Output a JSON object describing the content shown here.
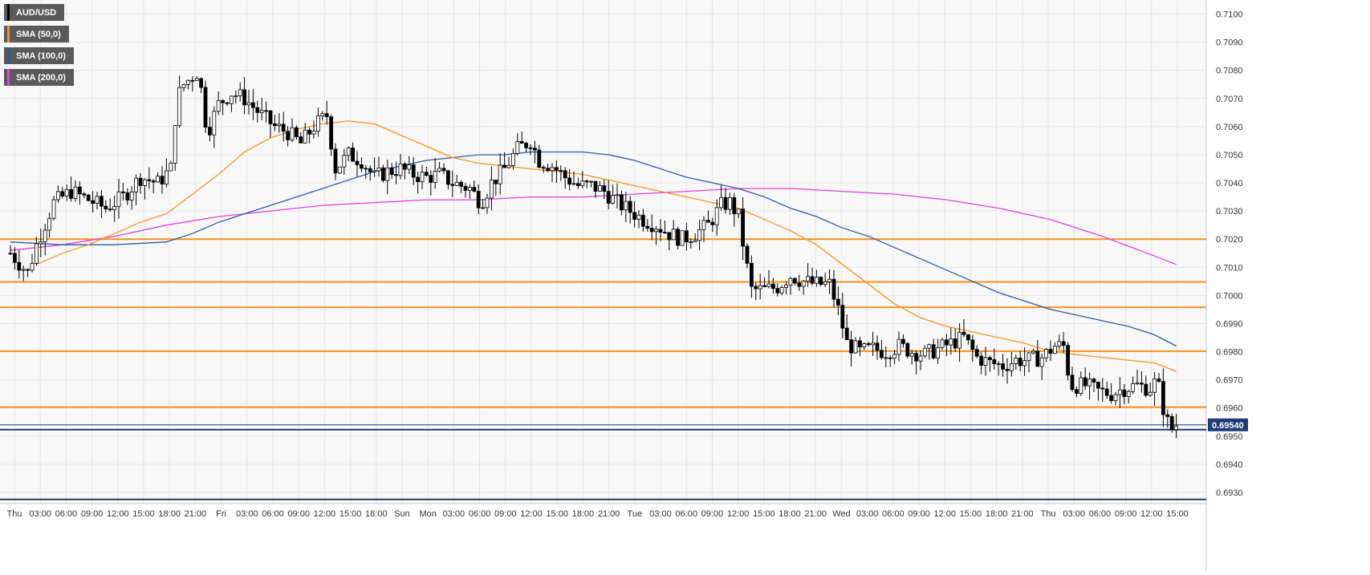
{
  "legend": [
    {
      "label": "AUD/USD",
      "color": "#000000"
    },
    {
      "label": "SMA (50,0)",
      "color": "#f7931e"
    },
    {
      "label": "SMA (100,0)",
      "color": "#2e5aa7"
    },
    {
      "label": "SMA (200,0)",
      "color": "#e040e0"
    }
  ],
  "chart_data": {
    "type": "candlestick",
    "symbol": "AUD/USD",
    "ylim": [
      0.6926,
      0.7105
    ],
    "y_ticks": [
      "0.7100",
      "0.7090",
      "0.7080",
      "0.7070",
      "0.7060",
      "0.7050",
      "0.7040",
      "0.7030",
      "0.7020",
      "0.7010",
      "0.7000",
      "0.6990",
      "0.6980",
      "0.6970",
      "0.6960",
      "0.6950",
      "0.6940",
      "0.6930"
    ],
    "x_ticks": [
      "Thu",
      "03:00",
      "06:00",
      "09:00",
      "12:00",
      "15:00",
      "18:00",
      "21:00",
      "Fri",
      "03:00",
      "06:00",
      "09:00",
      "12:00",
      "15:00",
      "18:00",
      "Sun",
      "Mon",
      "03:00",
      "06:00",
      "09:00",
      "12:00",
      "15:00",
      "18:00",
      "21:00",
      "Tue",
      "03:00",
      "06:00",
      "09:00",
      "12:00",
      "15:00",
      "18:00",
      "21:00",
      "Wed",
      "03:00",
      "06:00",
      "09:00",
      "12:00",
      "15:00",
      "18:00",
      "21:00",
      "Thu",
      "03:00",
      "06:00",
      "09:00",
      "12:00",
      "15:00"
    ],
    "session_dividers": [
      "Thu",
      "Fri",
      "Sun",
      "Mon",
      "Tue",
      "Wed",
      "Thu"
    ],
    "last_price_label": "0.69540",
    "last_price": 0.6954,
    "current_price_line": 0.69523,
    "bottom_line": 0.69275,
    "horizontal_levels": [
      0.702,
      0.70048,
      0.69958,
      0.69802,
      0.69603
    ],
    "colors": {
      "level": "#f7931e",
      "price_line": "#1f3a78",
      "sma50": "#f7931e",
      "sma100": "#2e5aa7",
      "sma200": "#e040e0",
      "grid": "#e6e6e6",
      "background": "#f8f8f8"
    },
    "grid": true,
    "legend_position": "top-left",
    "price_path": [
      [
        0,
        0.7015
      ],
      [
        2,
        0.7008
      ],
      [
        3,
        0.7018
      ],
      [
        5,
        0.7033
      ],
      [
        7,
        0.7037
      ],
      [
        9,
        0.7034
      ],
      [
        11,
        0.7031
      ],
      [
        13,
        0.7035
      ],
      [
        15,
        0.7042
      ],
      [
        17,
        0.704
      ],
      [
        18.5,
        0.7045
      ],
      [
        19.2,
        0.707
      ],
      [
        20,
        0.7075
      ],
      [
        21,
        0.7078
      ],
      [
        21.8,
        0.708
      ],
      [
        22.3,
        0.7063
      ],
      [
        23,
        0.706
      ],
      [
        24,
        0.7068
      ],
      [
        25.5,
        0.7072
      ],
      [
        27,
        0.707
      ],
      [
        29,
        0.7064
      ],
      [
        30.5,
        0.706
      ],
      [
        32,
        0.7058
      ],
      [
        33.5,
        0.7054
      ],
      [
        35,
        0.706
      ],
      [
        36.5,
        0.7064
      ],
      [
        37.5,
        0.7045
      ],
      [
        39,
        0.705
      ],
      [
        40.5,
        0.7048
      ],
      [
        42,
        0.7042
      ],
      [
        43.5,
        0.7044
      ],
      [
        45,
        0.7045
      ],
      [
        46.5,
        0.7043
      ],
      [
        48,
        0.7042
      ],
      [
        49.5,
        0.7043
      ],
      [
        51,
        0.704
      ],
      [
        53,
        0.7038
      ],
      [
        54.3,
        0.7033
      ],
      [
        55.5,
        0.704
      ],
      [
        57,
        0.7045
      ],
      [
        58.5,
        0.7052
      ],
      [
        60,
        0.7055
      ],
      [
        61,
        0.7048
      ],
      [
        62.5,
        0.7046
      ],
      [
        64,
        0.7042
      ],
      [
        65.5,
        0.7039
      ],
      [
        67,
        0.7039
      ],
      [
        68.5,
        0.7037
      ],
      [
        70,
        0.7033
      ],
      [
        71.5,
        0.703
      ],
      [
        73,
        0.7027
      ],
      [
        74.5,
        0.7025
      ],
      [
        76,
        0.7022
      ],
      [
        77.5,
        0.702
      ],
      [
        79,
        0.7022
      ],
      [
        80.5,
        0.7025
      ],
      [
        82,
        0.7032
      ],
      [
        83,
        0.7033
      ],
      [
        84,
        0.7028
      ],
      [
        84.8,
        0.7013
      ],
      [
        85.5,
        0.7002
      ],
      [
        87,
        0.7002
      ],
      [
        88.5,
        0.7003
      ],
      [
        90,
        0.7007
      ],
      [
        91.5,
        0.7005
      ],
      [
        93,
        0.7004
      ],
      [
        94.5,
        0.7004
      ],
      [
        95.5,
        0.6995
      ],
      [
        96.5,
        0.6983
      ],
      [
        98,
        0.698
      ],
      [
        99.5,
        0.6981
      ],
      [
        101,
        0.698
      ],
      [
        102.5,
        0.6982
      ],
      [
        104,
        0.698
      ],
      [
        105.5,
        0.6979
      ],
      [
        107,
        0.6981
      ],
      [
        108.5,
        0.6983
      ],
      [
        110,
        0.6985
      ],
      [
        111.5,
        0.6978
      ],
      [
        113,
        0.6976
      ],
      [
        114.5,
        0.6975
      ],
      [
        116,
        0.6977
      ],
      [
        117.5,
        0.6977
      ],
      [
        119,
        0.6978
      ],
      [
        120.5,
        0.6982
      ],
      [
        121.5,
        0.6982
      ],
      [
        122.3,
        0.6968
      ],
      [
        124,
        0.6968
      ],
      [
        125.5,
        0.6966
      ],
      [
        127,
        0.6965
      ],
      [
        128.5,
        0.6967
      ],
      [
        130,
        0.6968
      ],
      [
        131.5,
        0.6967
      ],
      [
        132.3,
        0.697
      ],
      [
        133,
        0.696
      ],
      [
        133.8,
        0.6952
      ],
      [
        134.5,
        0.6954
      ]
    ],
    "sma50": [
      [
        3,
        0.7011
      ],
      [
        6,
        0.7015
      ],
      [
        9,
        0.7018
      ],
      [
        12,
        0.7022
      ],
      [
        15,
        0.7026
      ],
      [
        18,
        0.7029
      ],
      [
        21,
        0.7036
      ],
      [
        24,
        0.7043
      ],
      [
        27,
        0.7051
      ],
      [
        30,
        0.7056
      ],
      [
        33,
        0.7059
      ],
      [
        36,
        0.7061
      ],
      [
        39,
        0.7062
      ],
      [
        42,
        0.7061
      ],
      [
        45,
        0.7057
      ],
      [
        48,
        0.7053
      ],
      [
        51,
        0.7049
      ],
      [
        54,
        0.7047
      ],
      [
        57,
        0.7046
      ],
      [
        60,
        0.7045
      ],
      [
        63,
        0.7044
      ],
      [
        66,
        0.7043
      ],
      [
        69,
        0.7041
      ],
      [
        72,
        0.7039
      ],
      [
        75,
        0.7037
      ],
      [
        78,
        0.7035
      ],
      [
        81,
        0.7033
      ],
      [
        84,
        0.7031
      ],
      [
        87,
        0.7027
      ],
      [
        90,
        0.7023
      ],
      [
        93,
        0.7018
      ],
      [
        96,
        0.7011
      ],
      [
        99,
        0.7004
      ],
      [
        102,
        0.6997
      ],
      [
        105,
        0.6992
      ],
      [
        108,
        0.6989
      ],
      [
        111,
        0.6987
      ],
      [
        114,
        0.6985
      ],
      [
        117,
        0.6983
      ],
      [
        120,
        0.698
      ],
      [
        123,
        0.6979
      ],
      [
        126,
        0.6978
      ],
      [
        129,
        0.6977
      ],
      [
        132,
        0.6976
      ],
      [
        134.5,
        0.6973
      ]
    ],
    "sma100": [
      [
        0,
        0.7019
      ],
      [
        6,
        0.7018
      ],
      [
        12,
        0.7018
      ],
      [
        18,
        0.7019
      ],
      [
        21,
        0.7022
      ],
      [
        24,
        0.7026
      ],
      [
        27,
        0.7029
      ],
      [
        30,
        0.7032
      ],
      [
        33,
        0.7035
      ],
      [
        36,
        0.7038
      ],
      [
        39,
        0.7041
      ],
      [
        42,
        0.7044
      ],
      [
        45,
        0.7046
      ],
      [
        48,
        0.7048
      ],
      [
        51,
        0.7049
      ],
      [
        54,
        0.705
      ],
      [
        57,
        0.705
      ],
      [
        60,
        0.7051
      ],
      [
        63,
        0.7051
      ],
      [
        66,
        0.7051
      ],
      [
        69,
        0.705
      ],
      [
        72,
        0.7048
      ],
      [
        75,
        0.7045
      ],
      [
        78,
        0.7042
      ],
      [
        81,
        0.704
      ],
      [
        84,
        0.7038
      ],
      [
        87,
        0.7035
      ],
      [
        90,
        0.7031
      ],
      [
        93,
        0.7028
      ],
      [
        96,
        0.7024
      ],
      [
        99,
        0.7021
      ],
      [
        102,
        0.7017
      ],
      [
        105,
        0.7013
      ],
      [
        108,
        0.7009
      ],
      [
        111,
        0.7005
      ],
      [
        114,
        0.7001
      ],
      [
        117,
        0.6998
      ],
      [
        120,
        0.6995
      ],
      [
        123,
        0.6993
      ],
      [
        126,
        0.6991
      ],
      [
        129,
        0.6989
      ],
      [
        132,
        0.6986
      ],
      [
        134.5,
        0.6982
      ]
    ],
    "sma200": [
      [
        0,
        0.7016
      ],
      [
        6,
        0.7018
      ],
      [
        12,
        0.7021
      ],
      [
        18,
        0.7025
      ],
      [
        24,
        0.7028
      ],
      [
        30,
        0.703
      ],
      [
        36,
        0.7032
      ],
      [
        42,
        0.7033
      ],
      [
        48,
        0.7034
      ],
      [
        54,
        0.7034
      ],
      [
        60,
        0.7035
      ],
      [
        66,
        0.7035
      ],
      [
        72,
        0.7036
      ],
      [
        78,
        0.7037
      ],
      [
        84,
        0.7038
      ],
      [
        90,
        0.7038
      ],
      [
        96,
        0.7037
      ],
      [
        102,
        0.7036
      ],
      [
        108,
        0.7034
      ],
      [
        114,
        0.7031
      ],
      [
        120,
        0.7027
      ],
      [
        126,
        0.7021
      ],
      [
        132,
        0.7014
      ],
      [
        134.5,
        0.7011
      ]
    ]
  }
}
